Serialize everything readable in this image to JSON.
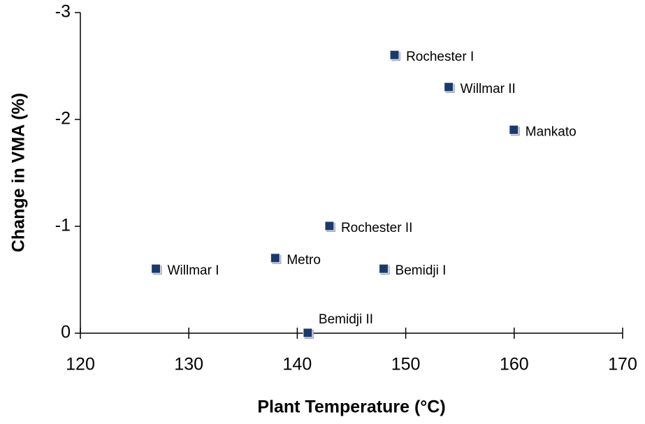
{
  "chart_data": {
    "type": "scatter",
    "x_label": "Plant Temperature (°C)",
    "y_label": "Change in VMA (%)",
    "labels": [
      "Rochester I",
      "Willmar II",
      "Mankato",
      "Rochester II",
      "Metro",
      "Bemidji I",
      "Willmar I",
      "Bemidji II"
    ],
    "x": [
      149,
      154,
      160,
      143,
      138,
      148,
      127,
      141
    ],
    "values": [
      -2.6,
      -2.3,
      -1.9,
      -1.0,
      -0.7,
      -0.6,
      -0.6,
      0
    ],
    "color": "#1a3a6b",
    "xlim": [
      120,
      170
    ],
    "xticks": [
      120,
      130,
      140,
      150,
      160,
      170
    ],
    "ylim": [
      0,
      -3
    ],
    "yticks": [
      0,
      -1,
      -2,
      -3
    ],
    "grid": false
  }
}
